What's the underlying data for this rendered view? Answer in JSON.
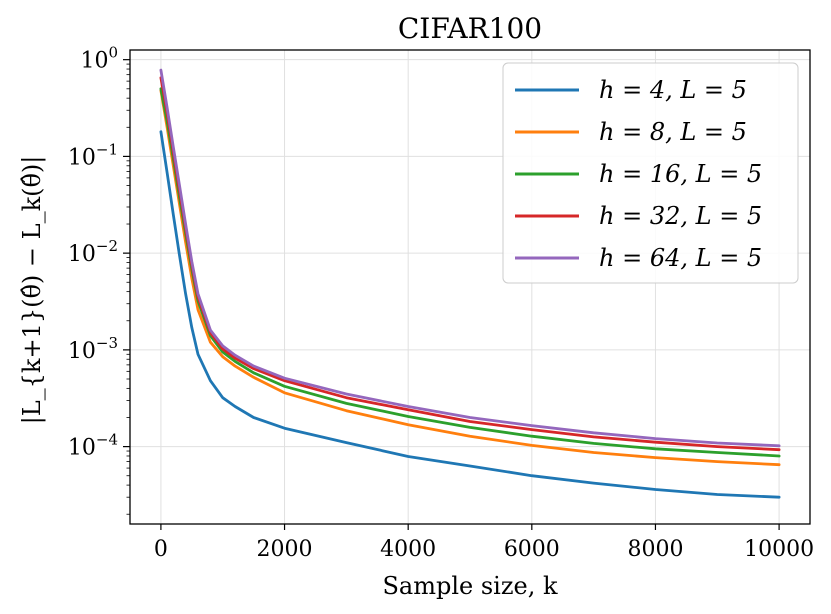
{
  "chart_data": {
    "type": "line",
    "title": "CIFAR100",
    "xlabel": "Sample size, k",
    "ylabel": "|L_{k+1}(θ̂) − L_k(θ̂)|",
    "xlim": [
      -500,
      10500
    ],
    "ylim_log10": [
      -4.8,
      0.1
    ],
    "yscale": "log",
    "grid": true,
    "legend_position": "top-right",
    "x_ticks": [
      {
        "value": 0,
        "label": "0"
      },
      {
        "value": 2000,
        "label": "2000"
      },
      {
        "value": 4000,
        "label": "4000"
      },
      {
        "value": 6000,
        "label": "6000"
      },
      {
        "value": 8000,
        "label": "8000"
      },
      {
        "value": 10000,
        "label": "10000"
      }
    ],
    "y_ticks": [
      {
        "exp": 0,
        "base": "10",
        "sup": "0"
      },
      {
        "exp": -1,
        "base": "10",
        "sup": "−1"
      },
      {
        "exp": -2,
        "base": "10",
        "sup": "−2"
      },
      {
        "exp": -3,
        "base": "10",
        "sup": "−3"
      },
      {
        "exp": -4,
        "base": "10",
        "sup": "−4"
      }
    ],
    "x": [
      0,
      100,
      200,
      300,
      400,
      500,
      600,
      800,
      1000,
      1200,
      1500,
      2000,
      3000,
      4000,
      5000,
      6000,
      7000,
      8000,
      9000,
      10000
    ],
    "series": [
      {
        "name": "h = 4, L = 5",
        "color": "#1f77b4",
        "values": [
          0.18,
          0.068,
          0.025,
          0.0095,
          0.0038,
          0.0017,
          0.0009,
          0.00048,
          0.00032,
          0.00026,
          0.0002,
          0.000155,
          0.00011,
          7.9e-05,
          6.3e-05,
          5e-05,
          4.2e-05,
          3.6e-05,
          3.2e-05,
          3e-05
        ]
      },
      {
        "name": "h = 8, L = 5",
        "color": "#ff7f0e",
        "values": [
          0.48,
          0.2,
          0.08,
          0.032,
          0.013,
          0.0055,
          0.0026,
          0.0012,
          0.00085,
          0.00068,
          0.00052,
          0.00036,
          0.000235,
          0.000168,
          0.000128,
          0.000103,
          8.7e-05,
          7.7e-05,
          7e-05,
          6.5e-05
        ]
      },
      {
        "name": "h = 16, L = 5",
        "color": "#2ca02c",
        "values": [
          0.5,
          0.23,
          0.095,
          0.038,
          0.016,
          0.0068,
          0.0032,
          0.0014,
          0.00095,
          0.00076,
          0.00058,
          0.00042,
          0.00028,
          0.000205,
          0.000158,
          0.000128,
          0.000108,
          9.5e-05,
          8.7e-05,
          8e-05
        ]
      },
      {
        "name": "h = 32, L = 5",
        "color": "#d62728",
        "values": [
          0.65,
          0.28,
          0.11,
          0.044,
          0.018,
          0.0075,
          0.0035,
          0.0015,
          0.00102,
          0.00082,
          0.00064,
          0.00048,
          0.00032,
          0.00024,
          0.000182,
          0.00015,
          0.000126,
          0.000111,
          0.0001,
          9.3e-05
        ]
      },
      {
        "name": "h = 64, L = 5",
        "color": "#9467bd",
        "values": [
          0.78,
          0.32,
          0.125,
          0.05,
          0.02,
          0.0082,
          0.0038,
          0.0016,
          0.0011,
          0.00088,
          0.00068,
          0.00051,
          0.00035,
          0.00026,
          0.0002,
          0.000165,
          0.000139,
          0.000121,
          0.000109,
          0.000102
        ]
      }
    ]
  }
}
